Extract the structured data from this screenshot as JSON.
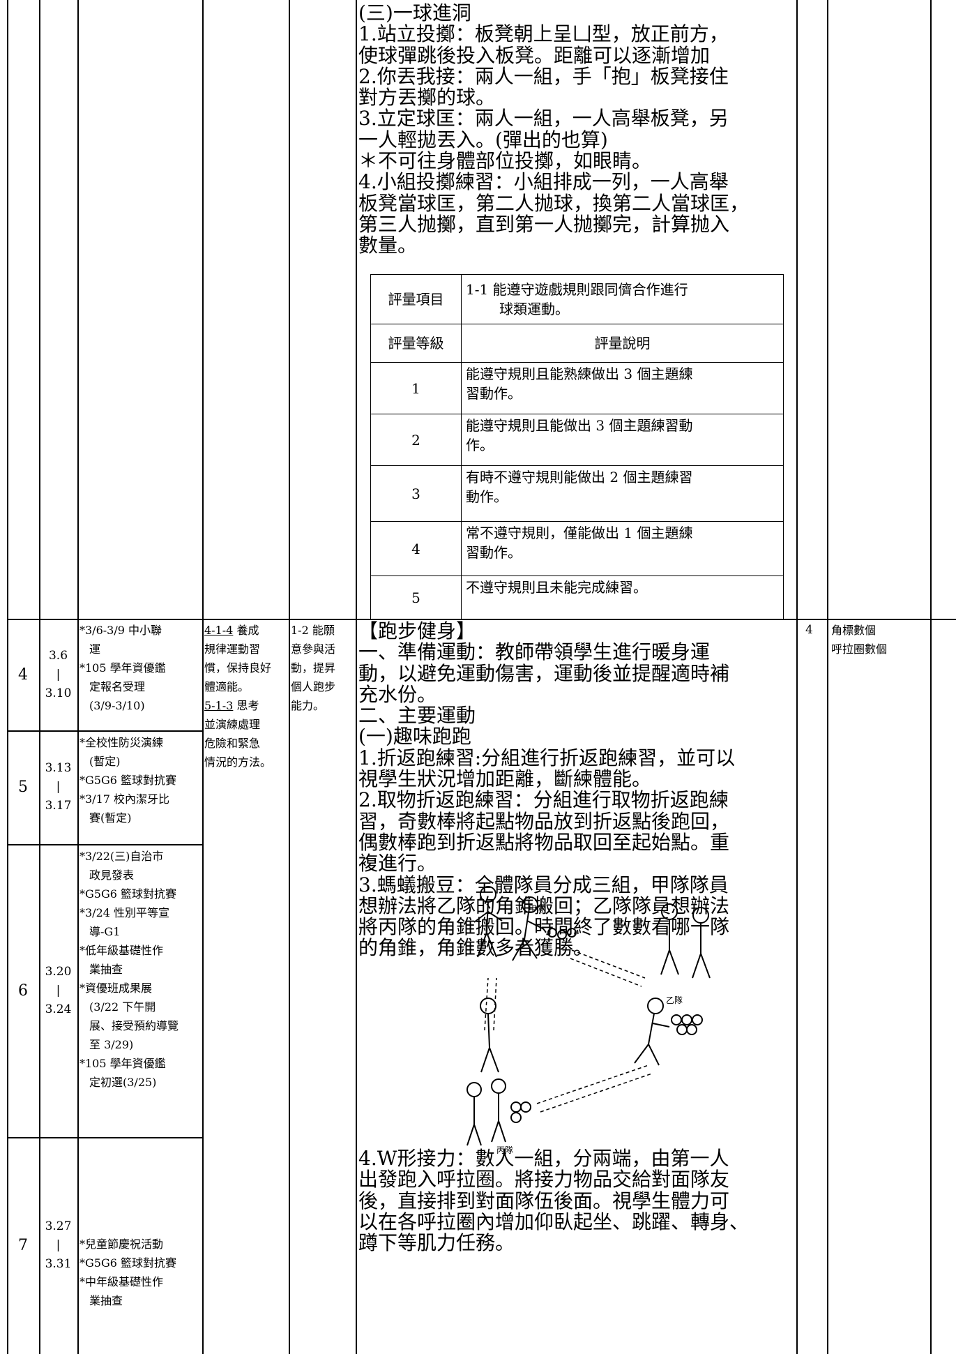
{
  "upper_activity": {
    "lines": [
      "(三)一球進洞",
      "1.站立投擲：板凳朝上呈凵型，放正前方，",
      "使球彈跳後投入板凳。距離可以逐漸增加",
      "2.你丟我接：兩人一組，手「抱」板凳接住",
      "對方丟擲的球。",
      "3.立定球匡：兩人一組，一人高舉板凳，另",
      "一人輕拋丟入。(彈出的也算)",
      "＊不可往身體部位投擲，如眼睛。",
      "4.小組投擲練習：小組排成一列，一人高舉",
      "板凳當球匡，第二人抛球，換第二人當球匡，",
      "第三人抛擲，直到第一人抛擲完，計算抛入",
      "數量。"
    ]
  },
  "eval_table": {
    "item_label": "評量項目",
    "item_text": [
      "1-1 能遵守遊戲規則跟同儕合作進行",
      "球類運動。"
    ],
    "level_header": "評量等級",
    "desc_header": "評量說明",
    "levels": [
      {
        "level": "1",
        "desc": [
          "能遵守規則且能熟練做出 3 個主題練",
          "習動作。"
        ]
      },
      {
        "level": "2",
        "desc": [
          "能遵守規則且能做出 3 個主題練習動",
          "作。"
        ]
      },
      {
        "level": "3",
        "desc": [
          "有時不遵守規則能做出 2 個主題練習",
          "動作。"
        ]
      },
      {
        "level": "4",
        "desc": [
          "常不遵守規則，僅能做出 1 個主題練",
          "習動作。"
        ]
      },
      {
        "level": "5",
        "desc": [
          "不遵守規則且未能完成練習。"
        ]
      }
    ]
  },
  "weeks": [
    {
      "week": "4",
      "dates": [
        "3.6",
        "|",
        "3.10"
      ],
      "events": [
        [
          "*3/6-3/9 中小聯",
          "運"
        ],
        [
          "*105 學年資優鑑",
          "定報名受理",
          "(3/9-3/10)"
        ]
      ]
    },
    {
      "week": "5",
      "dates": [
        "3.13",
        "|",
        "3.17"
      ],
      "events": [
        [
          "*全校性防災演練",
          "(暫定)"
        ],
        [
          "*G5G6 籃球對抗賽"
        ],
        [
          "*3/17 校內潔牙比",
          "賽(暫定)"
        ]
      ]
    },
    {
      "week": "6",
      "dates": [
        "3.20",
        "|",
        "3.24"
      ],
      "events": [
        [
          "*3/22(三)自治市",
          "政見發表"
        ],
        [
          "*G5G6 籃球對抗賽"
        ],
        [
          "*3/24 性別平等宣",
          "導-G1"
        ],
        [
          "*低年級基礎性作",
          "業抽查"
        ],
        [
          "*資優班成果展",
          "(3/22 下午開",
          "展、接受預約導覽",
          "至 3/29)"
        ],
        [
          "*105 學年資優鑑",
          "定初選(3/25)"
        ]
      ]
    },
    {
      "week": "7",
      "dates": [
        "3.27",
        "|",
        "3.31"
      ],
      "events": [
        [
          "*兒童節慶祝活動"
        ],
        [
          "*G5G6 籃球對抗賽"
        ],
        [
          "*中年級基礎性作",
          "業抽查"
        ]
      ]
    }
  ],
  "indicators": [
    {
      "code": "4-1-4",
      "lines": [
        "養成",
        "規律運動習",
        "慣，保持良好",
        "體適能。"
      ]
    },
    {
      "code": "5-1-3",
      "lines": [
        "思考",
        "並演練處理",
        "危險和緊急",
        "情況的方法。"
      ]
    }
  ],
  "objectives": [
    "1-2 能願",
    "意參與活",
    "動，提昇",
    "個人跑步",
    "能力。"
  ],
  "activity": {
    "part1": [
      "【跑步健身】",
      "一、準備運動：教師帶領學生進行暖身運",
      "動，以避免運動傷害，運動後並提醒適時補",
      "充水份。",
      "二、主要運動",
      "(一)趣味跑跑",
      "1.折返跑練習:分組進行折返跑練習，並可以",
      "視學生狀況增加距離，斷練體能。",
      "2.取物折返跑練習：分組進行取物折返跑練",
      "習，奇數棒將起點物品放到折返點後跑回，",
      "偶數棒跑到折返點將物品取回至起始點。重",
      "複進行。",
      "3.螞蟻搬豆：全體隊員分成三組，甲隊隊員",
      "想辦法將乙隊的角錐搬回；乙隊隊員想辦法",
      "將丙隊的角錐搬回。時間終了數數看哪一隊",
      "的角錐，角錐數多者獲勝。"
    ],
    "figure_labels": [
      "甲隊",
      "乙隊",
      "丙隊"
    ],
    "part2": [
      "4.W形接力：數人一組，分兩端，由第一人",
      "出發跑入呼拉圈。將接力物品交給對面隊友",
      "後，直接排到對面隊伍後面。視學生體力可",
      "以在各呼拉圈內增加仰臥起坐、跳躍、轉身、",
      "蹲下等肌力任務。"
    ]
  },
  "hours": "4",
  "equipment": [
    "角標數個",
    "呼拉圈數個"
  ]
}
